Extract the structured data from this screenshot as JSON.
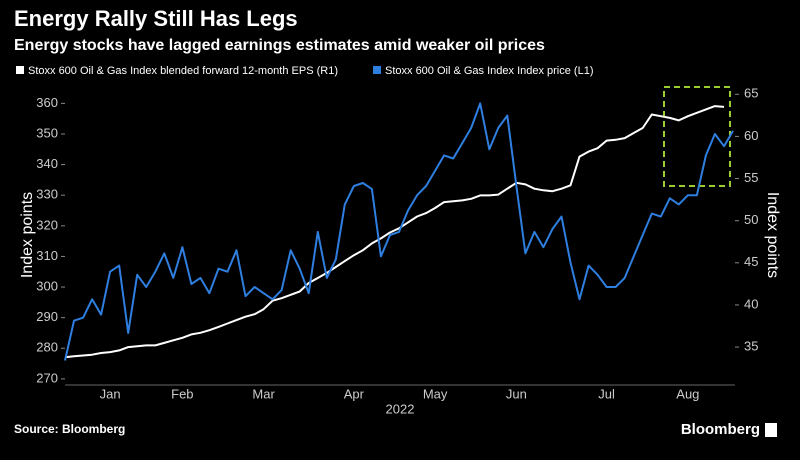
{
  "chart_data": {
    "type": "line",
    "title": "Energy Rally Still Has Legs",
    "subtitle": "Energy stocks have lagged earnings estimates amid weaker oil prices",
    "xlabel": "2022",
    "ylabel": "Index points",
    "y2label": "Index points",
    "source": "Source: Bloomberg",
    "brand": "Bloomberg",
    "categories": [
      null,
      null,
      null,
      null,
      null,
      "Jan",
      null,
      null,
      null,
      null,
      null,
      null,
      null,
      "Feb",
      null,
      null,
      null,
      null,
      null,
      null,
      null,
      null,
      "Mar",
      null,
      null,
      null,
      null,
      null,
      null,
      null,
      null,
      null,
      "Apr",
      null,
      null,
      null,
      null,
      null,
      null,
      null,
      null,
      "May",
      null,
      null,
      null,
      null,
      null,
      null,
      null,
      null,
      "Jun",
      null,
      null,
      null,
      null,
      null,
      null,
      null,
      null,
      null,
      "Jul",
      null,
      null,
      null,
      null,
      null,
      null,
      null,
      null,
      "Aug",
      null,
      null,
      null,
      null,
      null
    ],
    "series": [
      {
        "name": "Stoxx 600 Oil & Gas Index blended forward 12-month EPS (R1)",
        "color": "#ffffff",
        "axis": "y2",
        "values": [
          33.8,
          33.9,
          34.0,
          34.1,
          34.3,
          34.4,
          34.6,
          35.0,
          35.1,
          35.2,
          35.2,
          35.5,
          35.8,
          36.1,
          36.5,
          36.7,
          37.0,
          37.4,
          37.8,
          38.2,
          38.6,
          38.9,
          39.5,
          40.5,
          40.8,
          41.2,
          41.6,
          42.6,
          43.2,
          43.8,
          44.5,
          45.2,
          45.9,
          46.5,
          47.3,
          47.9,
          48.6,
          49.1,
          49.8,
          50.5,
          50.9,
          51.5,
          52.2,
          52.3,
          52.4,
          52.6,
          53.0,
          53.0,
          53.1,
          53.8,
          54.5,
          54.3,
          53.8,
          53.6,
          53.5,
          53.8,
          54.2,
          57.6,
          58.2,
          58.6,
          59.5,
          59.6,
          59.8,
          60.4,
          61.0,
          62.6,
          62.4,
          62.2,
          61.9,
          62.4,
          62.8,
          63.2,
          63.6,
          63.5,
          null
        ]
      },
      {
        "name": "Stoxx 600 Oil & Gas Index Index price (L1)",
        "color": "#2f7fe0",
        "values": [
          276,
          289,
          290,
          296,
          291,
          305,
          307,
          285,
          304,
          300,
          305,
          311,
          303,
          313,
          301,
          303,
          298,
          306,
          305,
          312,
          297,
          300,
          298,
          296,
          299,
          312,
          306,
          298,
          318,
          303,
          309,
          327,
          333,
          334,
          332,
          310,
          317,
          318,
          325,
          330,
          333,
          338,
          343,
          342,
          347,
          352,
          360,
          345,
          352,
          356,
          333,
          311,
          318,
          313,
          319,
          323,
          308,
          296,
          307,
          304,
          300,
          300,
          303,
          310,
          317,
          324,
          323,
          329,
          327,
          330,
          330,
          343,
          350,
          346,
          351
        ]
      }
    ],
    "ylim": [
      268,
      366
    ],
    "yticks": [
      270,
      280,
      290,
      300,
      310,
      320,
      330,
      340,
      350,
      360
    ],
    "y2lim": [
      30.5,
      66.1
    ],
    "y2ticks": [
      35,
      40,
      45,
      50,
      55,
      60,
      65
    ],
    "grid": false
  }
}
